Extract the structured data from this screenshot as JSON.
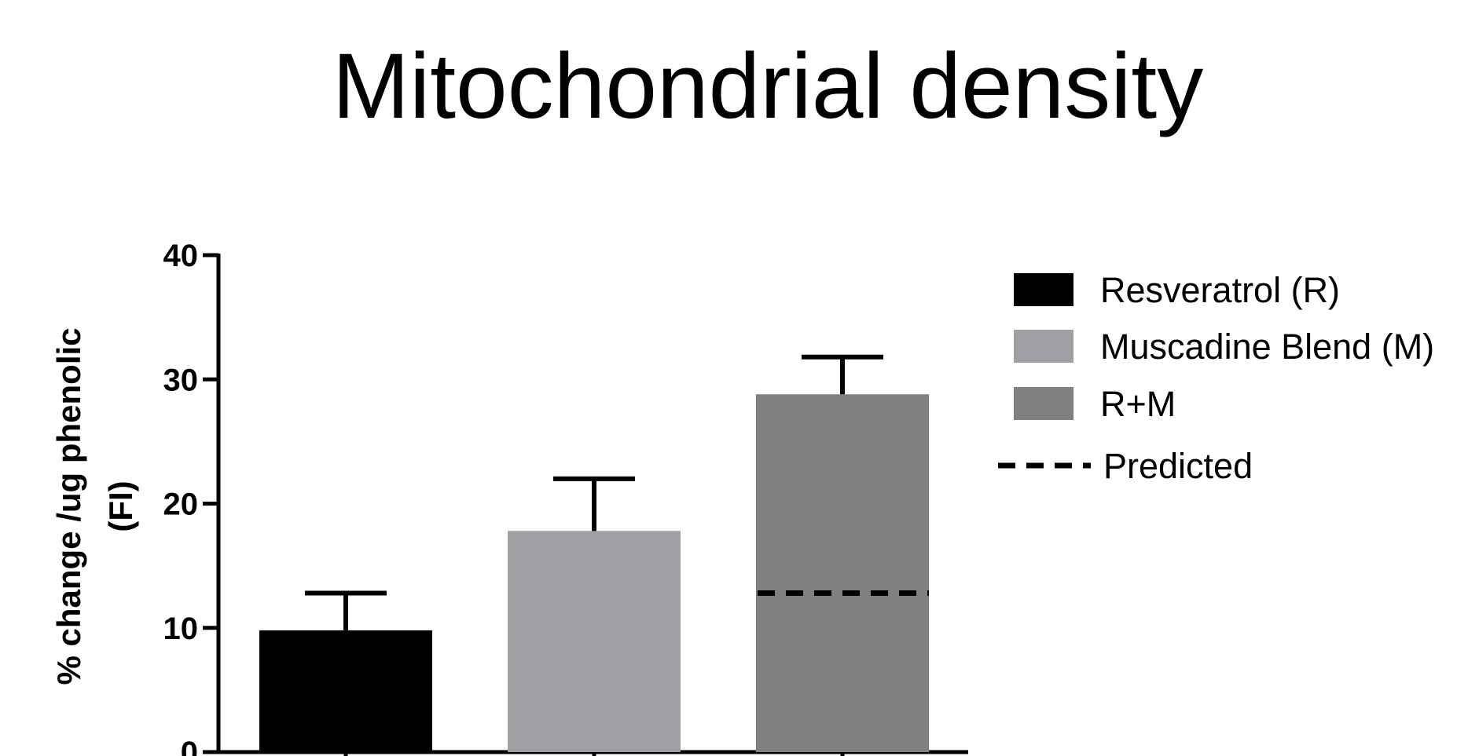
{
  "chart_data": {
    "type": "bar",
    "title": "Mitochondrial density",
    "ylabel_lines": [
      "% change /ug phenolic",
      "(FI)"
    ],
    "xlabel": "",
    "ylim": [
      0,
      40
    ],
    "yticks": [
      0,
      10,
      20,
      30,
      40
    ],
    "grid": false,
    "legend_position": "right",
    "series": [
      {
        "name": "Resveratrol (R)",
        "value": 9.8,
        "error": 3.0,
        "color": "#000000"
      },
      {
        "name": "Muscadine Blend (M)",
        "value": 17.8,
        "error": 4.2,
        "color": "#a0a0a4"
      },
      {
        "name": "R+M",
        "value": 28.8,
        "error": 3.0,
        "color": "#808080"
      }
    ],
    "predicted": {
      "name": "Predicted",
      "value": 12.8,
      "applies_to": "R+M",
      "style": "dashed"
    }
  }
}
